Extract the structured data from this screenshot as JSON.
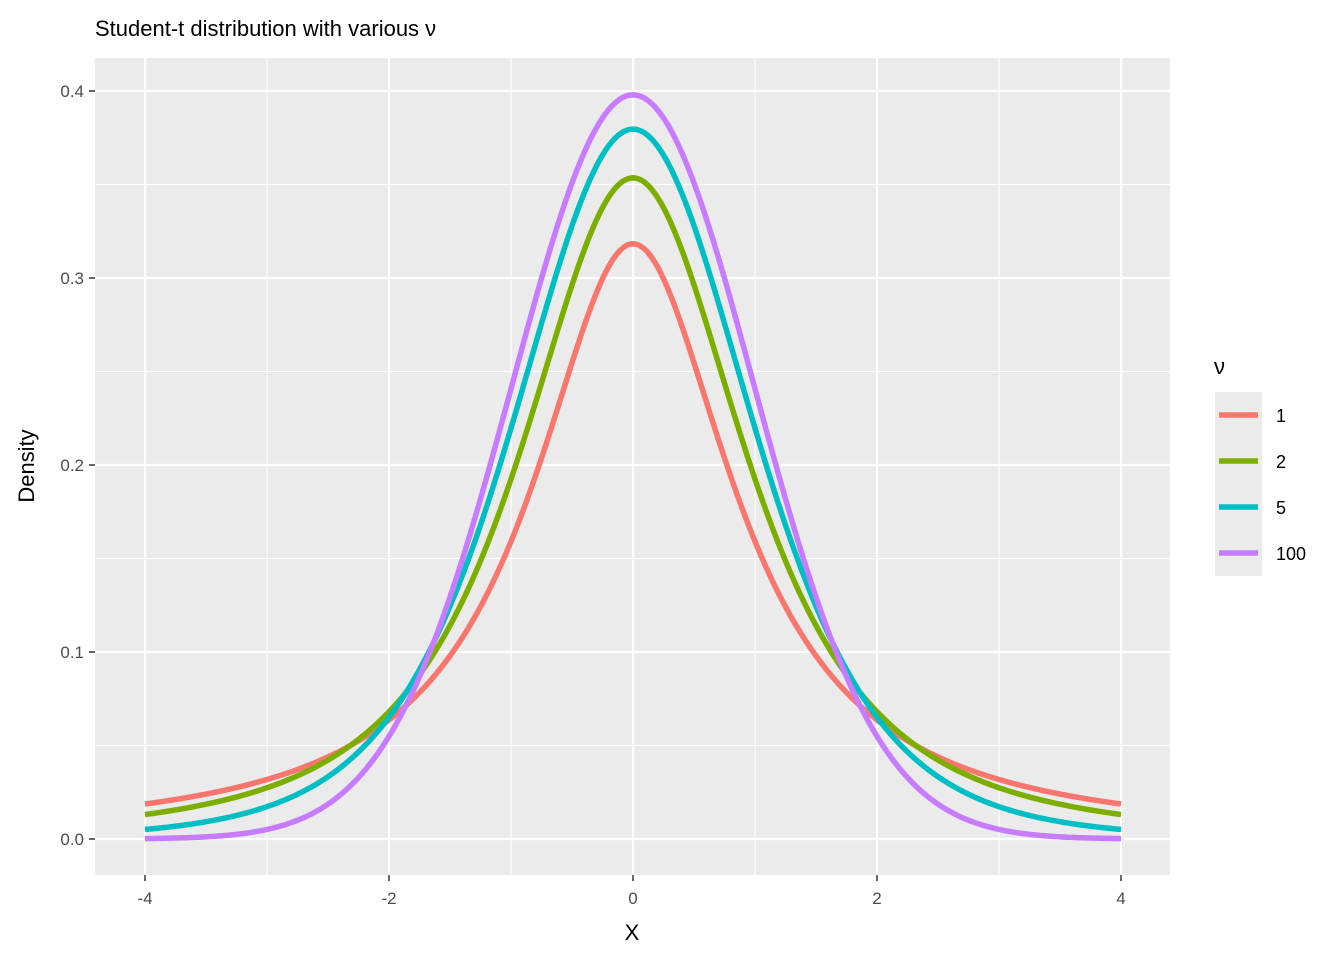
{
  "chart_data": {
    "type": "line",
    "title": "Student-t distribution with various ν",
    "xlabel": "X",
    "ylabel": "Density",
    "xlim": [
      -4,
      4
    ],
    "ylim": [
      0,
      0.4
    ],
    "x_ticks": [
      "-4",
      "-2",
      "0",
      "2",
      "4"
    ],
    "y_ticks": [
      "0.0",
      "0.1",
      "0.2",
      "0.3",
      "0.4"
    ],
    "grid": true,
    "legend": {
      "title": "ν",
      "placement": "right"
    },
    "series": [
      {
        "name": "1",
        "df": 1,
        "color": "#F8766D",
        "peak": 0.318,
        "y_at_x4": 0.019
      },
      {
        "name": "2",
        "df": 2,
        "color": "#7CAE00",
        "peak": 0.354,
        "y_at_x4": 0.013
      },
      {
        "name": "5",
        "df": 5,
        "color": "#00BFC4",
        "peak": 0.38,
        "y_at_x4": 0.005
      },
      {
        "name": "100",
        "df": 100,
        "color": "#C77CFF",
        "peak": 0.398,
        "y_at_x4": 0.0002
      }
    ]
  }
}
